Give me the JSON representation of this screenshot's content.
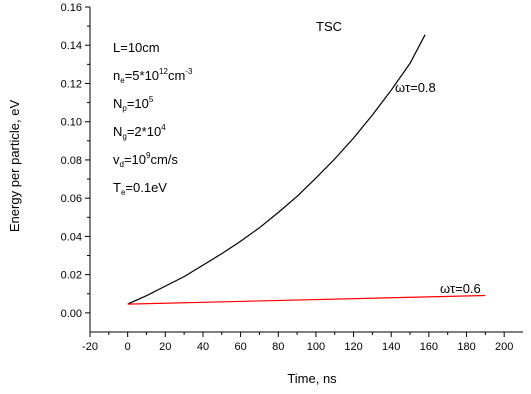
{
  "chart_data": {
    "type": "line",
    "title": "TSC",
    "xlabel": "Time, ns",
    "ylabel": "Energy per particle, eV",
    "xlim": [
      -20,
      210
    ],
    "ylim": [
      -0.01,
      0.16
    ],
    "xticks": [
      -20,
      0,
      20,
      40,
      60,
      80,
      100,
      120,
      140,
      160,
      180,
      200
    ],
    "yticks": [
      0.0,
      0.02,
      0.04,
      0.06,
      0.08,
      0.1,
      0.12,
      0.14,
      0.16
    ],
    "ytick_labels": [
      "0.00",
      "0.02",
      "0.04",
      "0.06",
      "0.08",
      "0.10",
      "0.12",
      "0.14",
      "0.16"
    ],
    "grid": false,
    "series": [
      {
        "name": "ωτ=0.8",
        "color": "#000000",
        "x": [
          0,
          10,
          20,
          30,
          40,
          50,
          60,
          70,
          80,
          90,
          100,
          110,
          120,
          130,
          140,
          150,
          158
        ],
        "y": [
          0.0046,
          0.009,
          0.014,
          0.019,
          0.025,
          0.031,
          0.0375,
          0.0445,
          0.0525,
          0.061,
          0.0705,
          0.0805,
          0.0915,
          0.1035,
          0.1165,
          0.1305,
          0.1455
        ]
      },
      {
        "name": "ωτ=0.6",
        "color": "#ff0000",
        "x": [
          0,
          190
        ],
        "y": [
          0.0046,
          0.0091
        ]
      }
    ],
    "annotations": {
      "L": {
        "base": "L=10cm"
      },
      "ne": {
        "base": "n",
        "sub": "e",
        "mid": "=5*10",
        "sup": "12",
        "tail": "cm",
        "sup2": "-3"
      },
      "Np": {
        "base": "N",
        "sub": "p",
        "mid": "=10",
        "sup": "5"
      },
      "Ng": {
        "base": "N",
        "sub": "g",
        "mid": "=2*10",
        "sup": "4"
      },
      "vd": {
        "base": "v",
        "sub": "d",
        "mid": "=10",
        "sup": "9",
        "tail": "cm/s"
      },
      "Te": {
        "base": "T",
        "sub": "e",
        "mid": "=0.1eV"
      }
    }
  }
}
